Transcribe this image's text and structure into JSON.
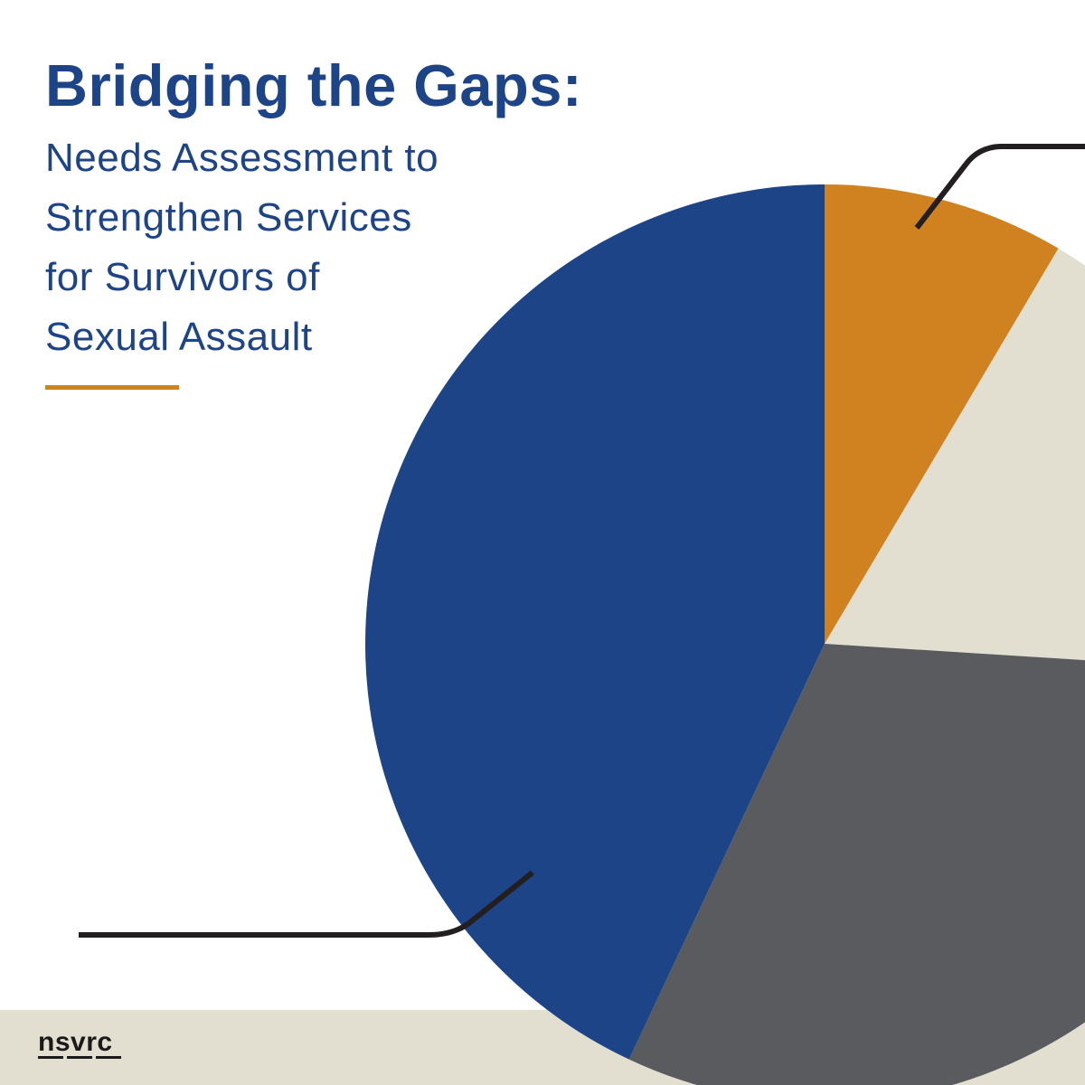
{
  "title": "Bridging the Gaps:",
  "subtitle_lines": [
    "Needs Assessment to",
    "Strengthen Services",
    "for Survivors of",
    "Sexual Assault"
  ],
  "logo_text": "nsvrc",
  "colors": {
    "brand_blue": "#1e4488",
    "accent_orange": "#d08220",
    "beige": "#e2dfd0",
    "dark_gray": "#5a5b5e",
    "leader_line": "#231f20"
  },
  "chart_data": {
    "type": "pie",
    "title": "",
    "legend": "none",
    "labels_shown": false,
    "slices": [
      {
        "value": 8.5,
        "color": "#d08220"
      },
      {
        "value": 17.5,
        "color": "#e2dfd0"
      },
      {
        "value": 31.0,
        "color": "#5a5b5e"
      },
      {
        "value": 43.0,
        "color": "#1e4488"
      }
    ]
  }
}
